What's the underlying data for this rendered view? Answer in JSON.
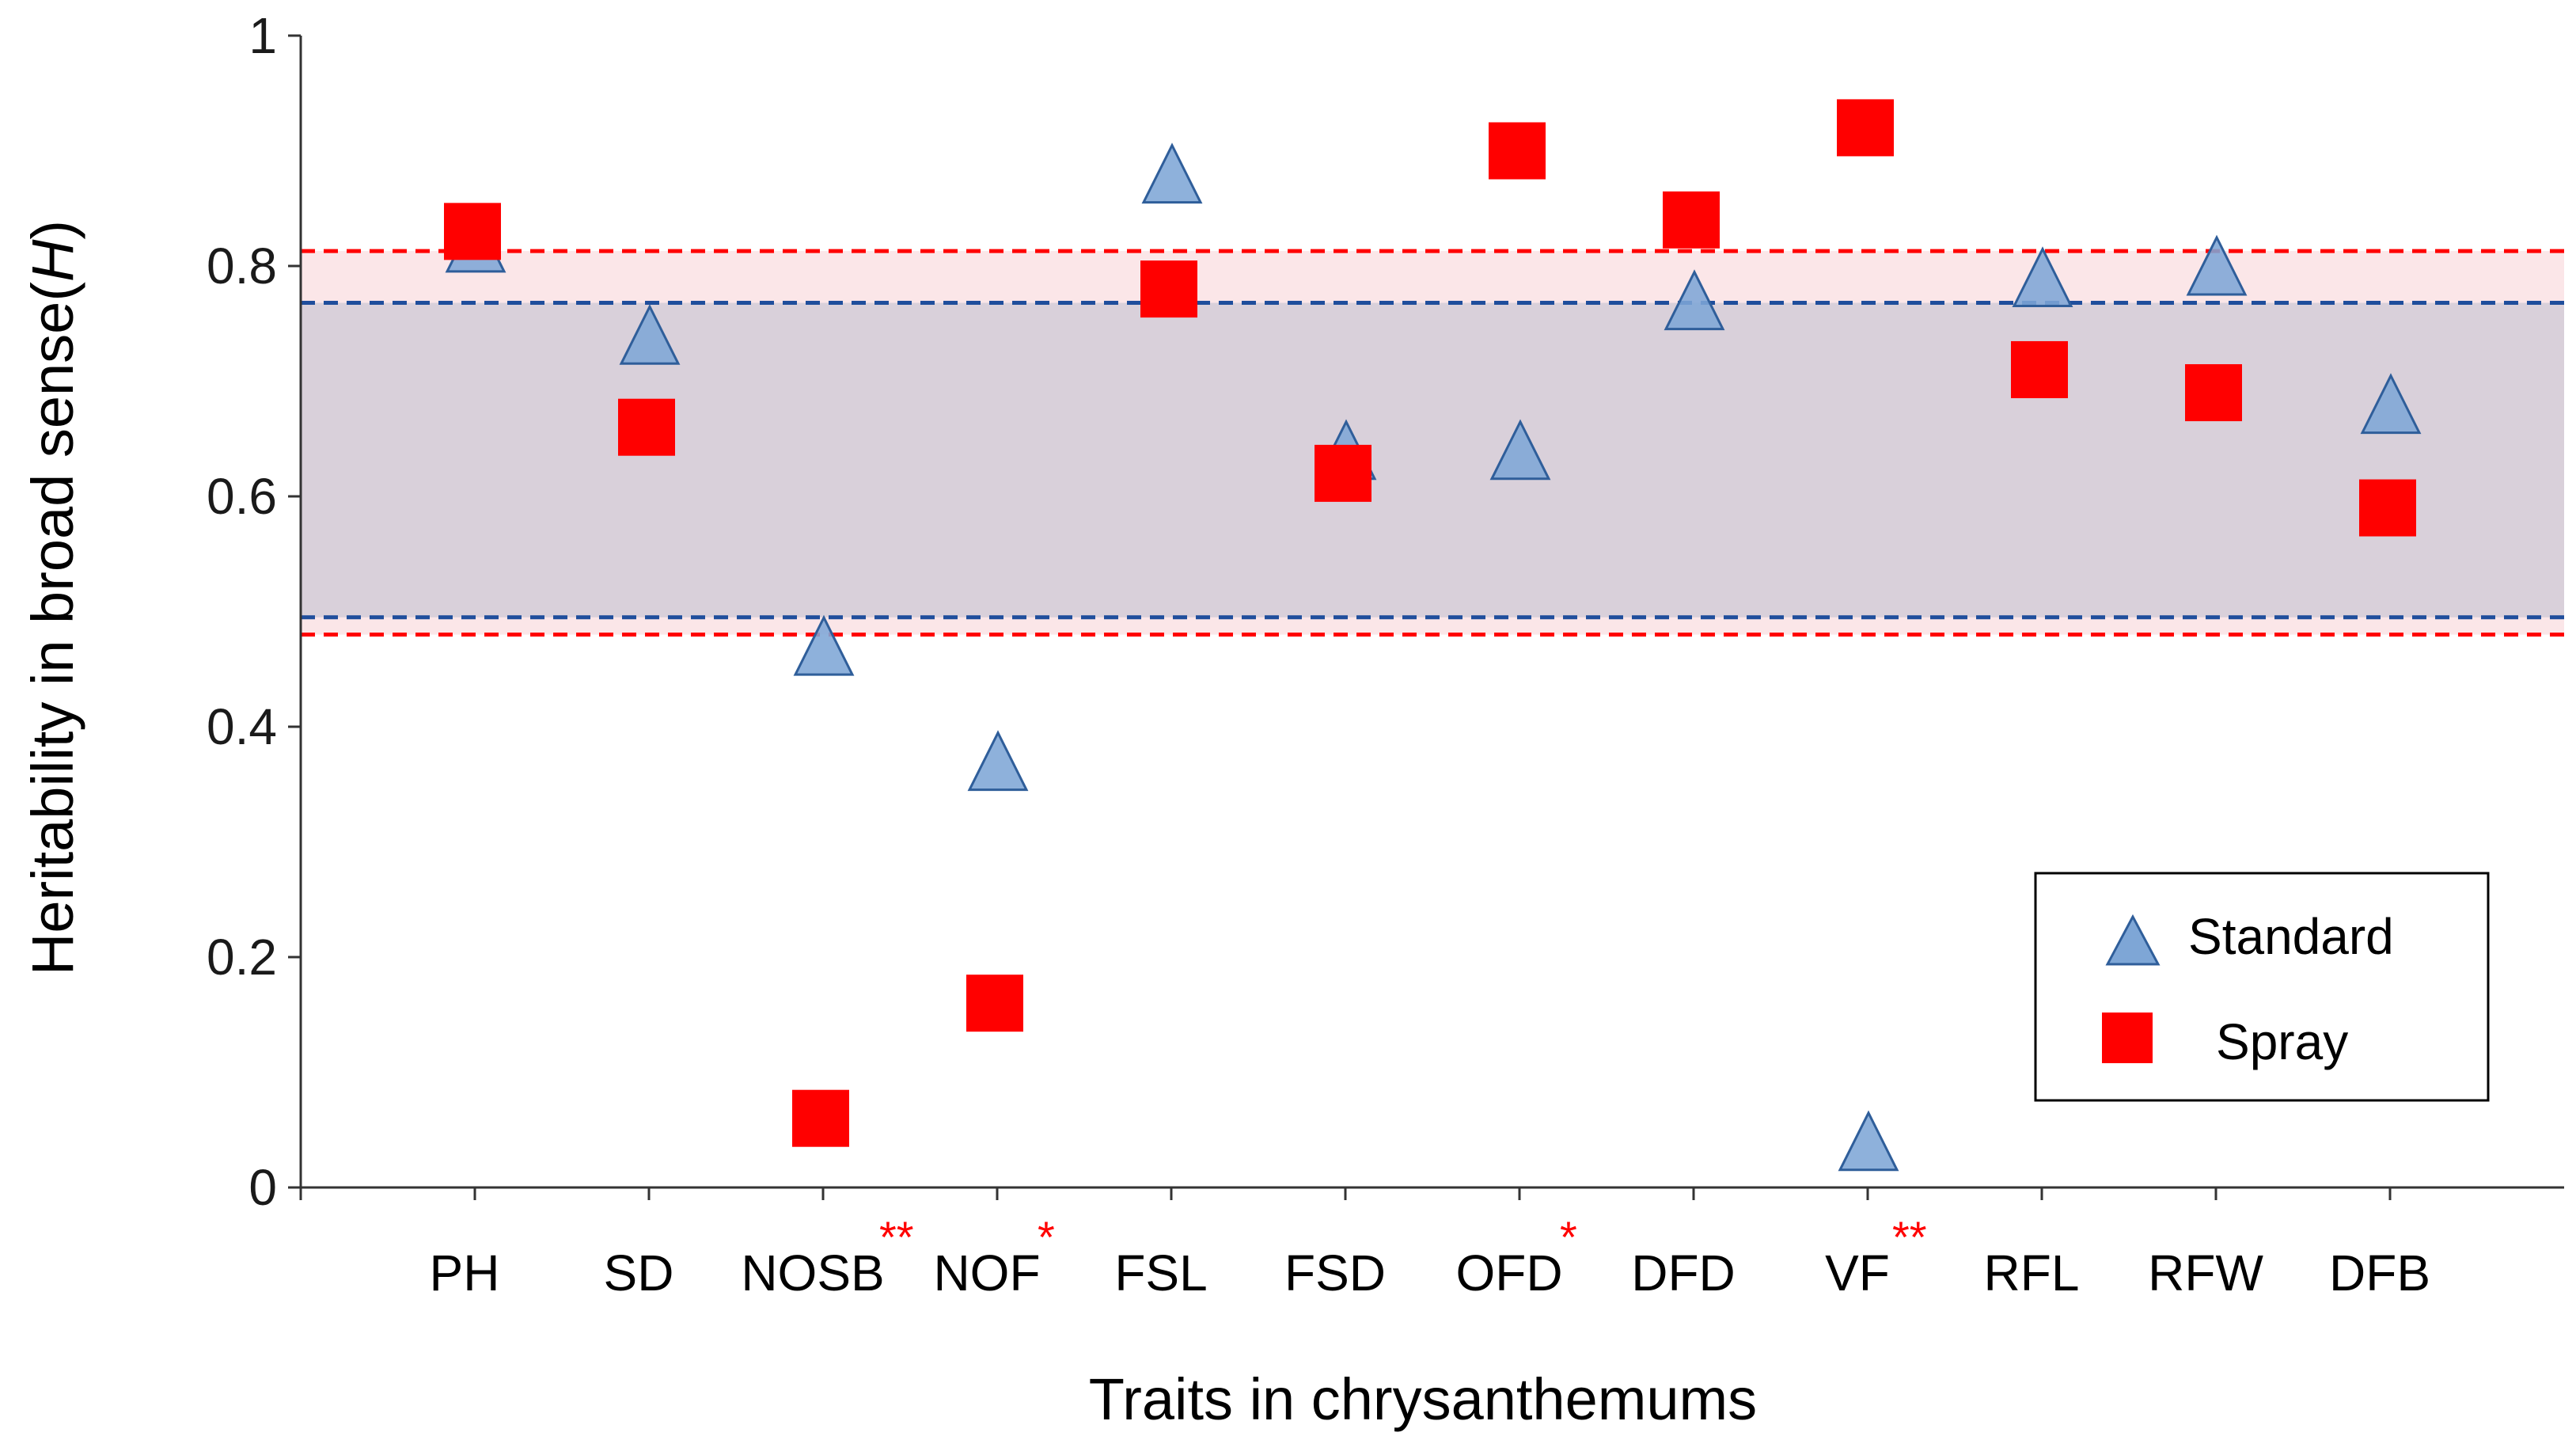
{
  "chart_data": {
    "type": "scatter",
    "title": "",
    "xlabel": "Traits in chrysanthemums",
    "ylabel": "Heritability in broad sense(",
    "ylabel_italic": "H",
    "ylabel_end": ")",
    "ylim": [
      0,
      1
    ],
    "yticks": [
      0,
      0.2,
      0.4,
      0.6,
      0.8,
      1
    ],
    "ytick_labels": [
      "0",
      "0.2",
      "0.4",
      "0.6",
      "0.8",
      "1"
    ],
    "categories": [
      "PH",
      "SD",
      "NOSB",
      "NOF",
      "FSL",
      "FSD",
      "OFD",
      "DFD",
      "VF",
      "RFL",
      "RFW",
      "DFB"
    ],
    "significance": [
      "",
      "",
      "**",
      "*",
      "",
      "",
      "*",
      "",
      "**",
      "",
      "",
      ""
    ],
    "series": [
      {
        "name": "Standard",
        "marker": "triangle",
        "color": "#7ea6d6",
        "values": [
          0.82,
          0.74,
          0.47,
          0.37,
          0.88,
          0.64,
          0.64,
          0.77,
          0.04,
          0.79,
          0.8,
          0.68
        ]
      },
      {
        "name": "Spray",
        "marker": "square",
        "color": "#ff0000",
        "values": [
          0.83,
          0.66,
          0.06,
          0.16,
          0.78,
          0.62,
          0.9,
          0.84,
          0.92,
          0.71,
          0.69,
          0.59
        ]
      }
    ],
    "reference_bands": [
      {
        "series": "Standard",
        "lower": 0.495,
        "upper": 0.768,
        "line_color": "#1f4e9c",
        "fill_color": "#d9d0da"
      },
      {
        "series": "Spray",
        "lower": 0.48,
        "upper": 0.813,
        "line_color": "#ff0000",
        "fill_color": "#fbe6e8"
      }
    ],
    "legend": {
      "position": "bottom-right",
      "entries": [
        "Standard",
        "Spray"
      ]
    }
  }
}
